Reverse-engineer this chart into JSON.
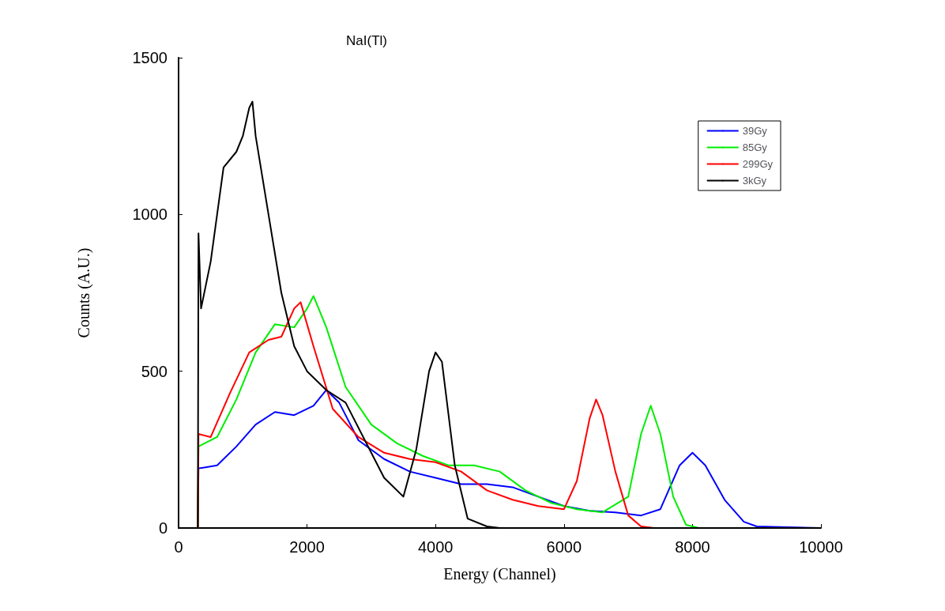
{
  "chart_data": {
    "type": "line",
    "title": "NaI(Tl)",
    "xlabel": "Energy (Channel)",
    "ylabel": "Counts (A.U.)",
    "xlim": [
      0,
      10000
    ],
    "xticks": [
      0,
      2000,
      4000,
      6000,
      8000,
      10000
    ],
    "ylim": [
      0,
      1500
    ],
    "yticks": [
      0,
      500,
      1000,
      1500
    ],
    "grid": false,
    "legend": "top right",
    "marker": "none",
    "line_style": "solid",
    "series": [
      {
        "name": "39Gy",
        "color": "#0000ff",
        "x": [
          300,
          310,
          600,
          900,
          1200,
          1500,
          1800,
          2100,
          2300,
          2500,
          2800,
          3200,
          3600,
          4000,
          4400,
          4800,
          5200,
          5600,
          6000,
          6400,
          6800,
          7200,
          7500,
          7800,
          8000,
          8200,
          8500,
          8800,
          9000,
          10000
        ],
        "values": [
          0,
          190,
          200,
          260,
          330,
          370,
          360,
          390,
          440,
          400,
          280,
          220,
          180,
          160,
          140,
          140,
          130,
          100,
          70,
          55,
          50,
          40,
          60,
          200,
          240,
          200,
          90,
          20,
          5,
          0
        ]
      },
      {
        "name": "85Gy",
        "color": "#00ee00",
        "x": [
          300,
          310,
          600,
          900,
          1200,
          1500,
          1800,
          2000,
          2100,
          2300,
          2600,
          3000,
          3400,
          3800,
          4200,
          4600,
          5000,
          5400,
          5800,
          6200,
          6600,
          7000,
          7200,
          7350,
          7500,
          7700,
          7900,
          8100,
          10000
        ],
        "values": [
          0,
          260,
          290,
          410,
          560,
          650,
          640,
          700,
          740,
          640,
          450,
          330,
          270,
          230,
          200,
          200,
          180,
          120,
          80,
          60,
          50,
          100,
          300,
          390,
          300,
          100,
          10,
          0,
          0
        ]
      },
      {
        "name": "299Gy",
        "color": "#ff0000",
        "x": [
          300,
          310,
          500,
          800,
          1100,
          1400,
          1600,
          1800,
          1900,
          2100,
          2400,
          2800,
          3200,
          3600,
          4000,
          4400,
          4800,
          5200,
          5600,
          6000,
          6200,
          6400,
          6500,
          6600,
          6800,
          7000,
          7200,
          7400,
          10000
        ],
        "values": [
          0,
          300,
          290,
          430,
          560,
          600,
          610,
          700,
          720,
          580,
          380,
          290,
          240,
          220,
          210,
          180,
          120,
          90,
          70,
          60,
          150,
          350,
          410,
          360,
          180,
          40,
          5,
          0,
          0
        ]
      },
      {
        "name": "3kGy",
        "color": "#000000",
        "x": [
          300,
          310,
          350,
          500,
          700,
          900,
          1000,
          1100,
          1150,
          1200,
          1400,
          1600,
          1800,
          2000,
          2300,
          2600,
          2900,
          3200,
          3500,
          3700,
          3900,
          4000,
          4100,
          4300,
          4500,
          4800,
          5000,
          10000
        ],
        "values": [
          0,
          940,
          700,
          850,
          1150,
          1200,
          1250,
          1340,
          1360,
          1250,
          1000,
          750,
          580,
          500,
          440,
          400,
          280,
          160,
          100,
          250,
          500,
          560,
          530,
          200,
          30,
          5,
          0,
          0
        ]
      }
    ]
  }
}
